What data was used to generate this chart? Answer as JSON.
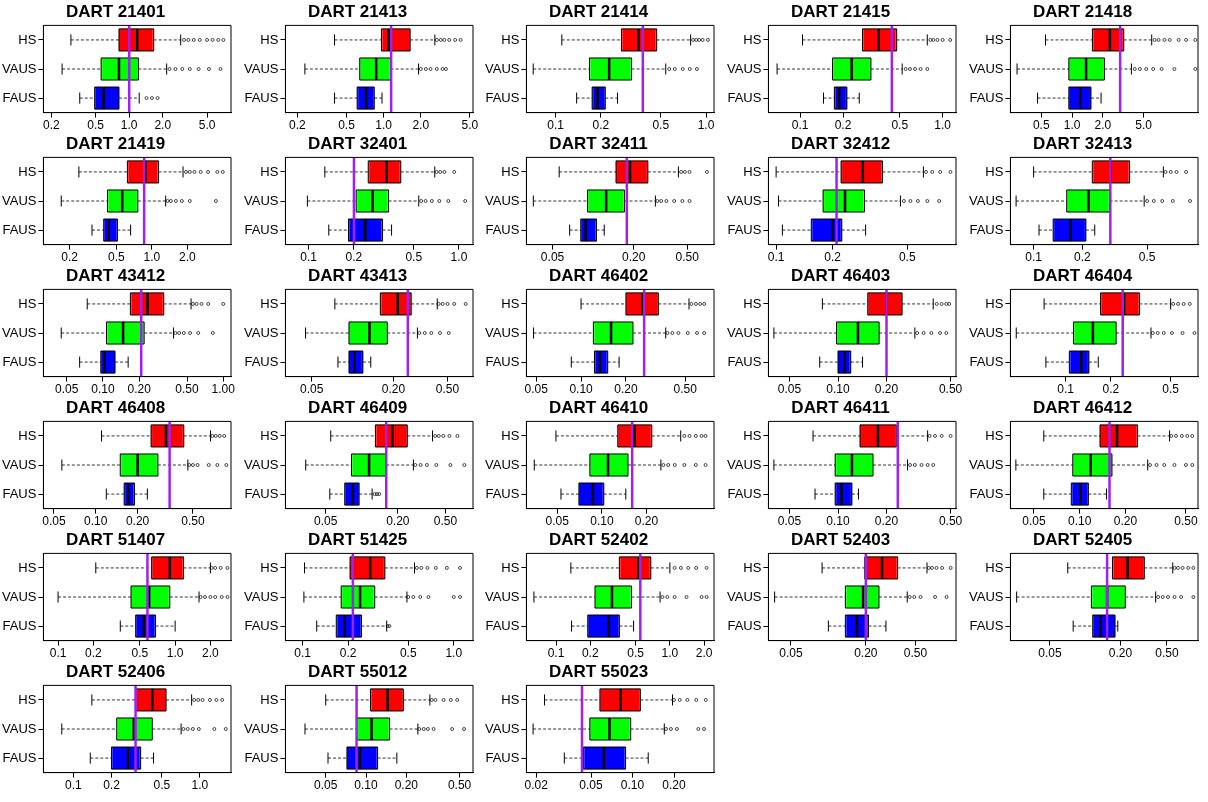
{
  "chart_data": [
    {
      "type": "box",
      "title": "DART 21401",
      "orientation": "horizontal",
      "categories": [
        "HS",
        "VAUS",
        "FAUS"
      ],
      "colors": [
        "#ff0000",
        "#00ff00",
        "#0000ff"
      ],
      "log": "x",
      "xlim": [
        0.17,
        8.2
      ],
      "xticks": [
        0.2,
        0.5,
        {
          "value": 1,
          "label": "1.0"
        },
        {
          "value": 2,
          "label": "2.0"
        },
        {
          "value": 5,
          "label": "5.0"
        }
      ],
      "ref_lines": [
        {
          "axis": "x",
          "value": 1.0,
          "color": "#a020f0"
        }
      ],
      "boxes": [
        {
          "low": 0.3,
          "q1": 0.81,
          "median": 1.18,
          "q3": 1.66,
          "high": 2.9,
          "outliers": [
            3.1,
            3.4,
            3.8,
            4.3,
            5.0,
            5.6,
            6.3,
            7.0
          ]
        },
        {
          "low": 0.25,
          "q1": 0.56,
          "median": 0.81,
          "q3": 1.21,
          "high": 2.17,
          "outliers": [
            2.3,
            2.6,
            3.0,
            3.5,
            4.2,
            5.2,
            6.6
          ]
        },
        {
          "low": 0.36,
          "q1": 0.49,
          "median": 0.59,
          "q3": 0.81,
          "high": 1.23,
          "outliers": [
            1.43,
            1.6,
            1.8
          ]
        }
      ]
    },
    {
      "type": "box",
      "title": "DART 21413",
      "orientation": "horizontal",
      "categories": [
        "HS",
        "VAUS",
        "FAUS"
      ],
      "colors": [
        "#ff0000",
        "#00ff00",
        "#0000ff"
      ],
      "log": "x",
      "xlim": [
        0.16,
        5.3
      ],
      "xticks": [
        0.2,
        0.5,
        {
          "value": 1,
          "label": "1.0"
        },
        {
          "value": 2,
          "label": "2.0"
        },
        {
          "value": 5,
          "label": "5.0"
        }
      ],
      "ref_lines": [
        {
          "axis": "x",
          "value": 1.15,
          "color": "#a020f0"
        }
      ],
      "boxes": [
        {
          "low": 0.4,
          "q1": 0.96,
          "median": 1.1,
          "q3": 1.64,
          "high": 2.6,
          "outliers": [
            2.7,
            2.9,
            3.1,
            3.4,
            3.8,
            4.2
          ]
        },
        {
          "low": 0.23,
          "q1": 0.64,
          "median": 0.87,
          "q3": 1.14,
          "high": 1.92,
          "outliers": [
            2.0,
            2.2,
            2.4,
            2.7,
            3.0,
            3.2
          ]
        },
        {
          "low": 0.4,
          "q1": 0.61,
          "median": 0.72,
          "q3": 0.84,
          "high": 0.97
        }
      ]
    },
    {
      "type": "box",
      "title": "DART 21414",
      "orientation": "horizontal",
      "categories": [
        "HS",
        "VAUS",
        "FAUS"
      ],
      "colors": [
        "#ff0000",
        "#00ff00",
        "#0000ff"
      ],
      "log": "x",
      "xlim": [
        0.064,
        1.13
      ],
      "xticks": [
        0.1,
        0.2,
        0.5,
        {
          "value": 1,
          "label": "1.0"
        }
      ],
      "ref_lines": [
        {
          "axis": "x",
          "value": 0.38,
          "color": "#a020f0"
        }
      ],
      "boxes": [
        {
          "low": 0.11,
          "q1": 0.274,
          "median": 0.356,
          "q3": 0.47,
          "high": 0.79,
          "outliers": [
            0.82,
            0.86,
            0.9,
            0.95,
            1.03
          ]
        },
        {
          "low": 0.071,
          "q1": 0.168,
          "median": 0.227,
          "q3": 0.32,
          "high": 0.54,
          "outliers": [
            0.57,
            0.62,
            0.7,
            0.78,
            0.87
          ]
        },
        {
          "low": 0.138,
          "q1": 0.175,
          "median": 0.19,
          "q3": 0.214,
          "high": 0.258
        }
      ]
    },
    {
      "type": "box",
      "title": "DART 21415",
      "orientation": "horizontal",
      "categories": [
        "HS",
        "VAUS",
        "FAUS"
      ],
      "colors": [
        "#ff0000",
        "#00ff00",
        "#0000ff"
      ],
      "log": "x",
      "xlim": [
        0.06,
        1.24
      ],
      "xticks": [
        0.1,
        0.2,
        0.5,
        {
          "value": 1,
          "label": "1.0"
        }
      ],
      "ref_lines": [
        {
          "axis": "x",
          "value": 0.44,
          "color": "#a020f0"
        }
      ],
      "boxes": [
        {
          "low": 0.104,
          "q1": 0.274,
          "median": 0.356,
          "q3": 0.476,
          "high": 0.78,
          "outliers": [
            0.82,
            0.86,
            0.92,
            1.0,
            1.13
          ]
        },
        {
          "low": 0.069,
          "q1": 0.169,
          "median": 0.23,
          "q3": 0.314,
          "high": 0.52,
          "outliers": [
            0.55,
            0.59,
            0.64,
            0.7,
            0.78
          ]
        },
        {
          "low": 0.146,
          "q1": 0.174,
          "median": 0.188,
          "q3": 0.213,
          "high": 0.26
        }
      ]
    },
    {
      "type": "box",
      "title": "DART 21418",
      "orientation": "horizontal",
      "categories": [
        "HS",
        "VAUS",
        "FAUS"
      ],
      "colors": [
        "#ff0000",
        "#00ff00",
        "#0000ff"
      ],
      "log": "x",
      "xlim": [
        0.25,
        17
      ],
      "xticks": [
        0.5,
        {
          "value": 1,
          "label": "1.0"
        },
        {
          "value": 2,
          "label": "2.0"
        },
        {
          "value": 5,
          "label": "5.0"
        }
      ],
      "ref_lines": [
        {
          "axis": "x",
          "value": 2.95,
          "color": "#a020f0"
        }
      ],
      "boxes": [
        {
          "low": 0.55,
          "q1": 1.58,
          "median": 2.34,
          "q3": 3.2,
          "high": 6.0,
          "outliers": [
            6.4,
            7,
            8,
            9,
            11,
            13,
            16
          ]
        },
        {
          "low": 0.29,
          "q1": 0.93,
          "median": 1.37,
          "q3": 2.07,
          "high": 3.8,
          "outliers": [
            4.1,
            4.6,
            5.3,
            6.2,
            7.5,
            10,
            16
          ]
        },
        {
          "low": 0.46,
          "q1": 0.93,
          "median": 1.2,
          "q3": 1.53,
          "high": 1.92
        }
      ]
    },
    {
      "type": "box",
      "title": "DART 21419",
      "orientation": "horizontal",
      "categories": [
        "HS",
        "VAUS",
        "FAUS"
      ],
      "colors": [
        "#ff0000",
        "#00ff00",
        "#0000ff"
      ],
      "log": "x",
      "xlim": [
        0.12,
        4.7
      ],
      "xticks": [
        0.2,
        0.5,
        {
          "value": 1,
          "label": "1.0"
        },
        {
          "value": 2,
          "label": "2.0"
        }
      ],
      "ref_lines": [
        {
          "axis": "x",
          "value": 0.86,
          "color": "#a020f0"
        }
      ],
      "boxes": [
        {
          "low": 0.24,
          "q1": 0.62,
          "median": 0.88,
          "q3": 1.14,
          "high": 1.84,
          "outliers": [
            1.95,
            2.1,
            2.3,
            2.6,
            3.0,
            3.6,
            4.0
          ]
        },
        {
          "low": 0.17,
          "q1": 0.42,
          "median": 0.56,
          "q3": 0.76,
          "high": 1.31,
          "outliers": [
            1.36,
            1.45,
            1.6,
            1.8,
            2.1,
            3.5
          ]
        },
        {
          "low": 0.31,
          "q1": 0.39,
          "median": 0.43,
          "q3": 0.51,
          "high": 0.66
        }
      ]
    },
    {
      "type": "box",
      "title": "DART 32401",
      "orientation": "horizontal",
      "categories": [
        "HS",
        "VAUS",
        "FAUS"
      ],
      "colors": [
        "#ff0000",
        "#00ff00",
        "#0000ff"
      ],
      "log": "x",
      "xlim": [
        0.07,
        1.24
      ],
      "xticks": [
        0.1,
        0.2,
        0.5,
        {
          "value": 1,
          "label": "1.0"
        }
      ],
      "ref_lines": [
        {
          "axis": "x",
          "value": 0.2,
          "color": "#a020f0"
        }
      ],
      "boxes": [
        {
          "low": 0.128,
          "q1": 0.249,
          "median": 0.33,
          "q3": 0.41,
          "high": 0.69,
          "outliers": [
            0.71,
            0.75,
            0.8,
            0.93
          ]
        },
        {
          "low": 0.098,
          "q1": 0.207,
          "median": 0.266,
          "q3": 0.34,
          "high": 0.54,
          "outliers": [
            0.56,
            0.6,
            0.66,
            0.74,
            0.85,
            1.1
          ]
        },
        {
          "low": 0.136,
          "q1": 0.184,
          "median": 0.238,
          "q3": 0.31,
          "high": 0.356
        }
      ]
    },
    {
      "type": "box",
      "title": "DART 32411",
      "orientation": "horizontal",
      "categories": [
        "HS",
        "VAUS",
        "FAUS"
      ],
      "colors": [
        "#ff0000",
        "#00ff00",
        "#0000ff"
      ],
      "log": "x",
      "xlim": [
        0.032,
        0.79
      ],
      "xticks": [
        0.05,
        {
          "value": 0.2,
          "label": "0.20"
        },
        {
          "value": 0.5,
          "label": "0.50"
        }
      ],
      "ref_lines": [
        {
          "axis": "x",
          "value": 0.178,
          "color": "#a020f0"
        }
      ],
      "boxes": [
        {
          "low": 0.056,
          "q1": 0.148,
          "median": 0.188,
          "q3": 0.255,
          "high": 0.43,
          "outliers": [
            0.45,
            0.48,
            0.52,
            0.7
          ]
        },
        {
          "low": 0.036,
          "q1": 0.091,
          "median": 0.125,
          "q3": 0.171,
          "high": 0.29,
          "outliers": [
            0.3,
            0.32,
            0.35,
            0.4,
            0.46,
            0.52
          ]
        },
        {
          "low": 0.067,
          "q1": 0.081,
          "median": 0.088,
          "q3": 0.106,
          "high": 0.121
        }
      ]
    },
    {
      "type": "box",
      "title": "DART 32412",
      "orientation": "horizontal",
      "categories": [
        "HS",
        "VAUS",
        "FAUS"
      ],
      "colors": [
        "#ff0000",
        "#00ff00",
        "#0000ff"
      ],
      "log": "x",
      "xlim": [
        0.091,
        0.91
      ],
      "xticks": [
        0.1,
        0.2,
        0.5
      ],
      "ref_lines": [
        {
          "axis": "x",
          "value": 0.21,
          "color": "#a020f0"
        }
      ],
      "boxes": [
        {
          "low": 0.1,
          "q1": 0.222,
          "median": 0.29,
          "q3": 0.369,
          "high": 0.61,
          "outliers": [
            0.63,
            0.68,
            0.75,
            0.85
          ]
        },
        {
          "low": 0.103,
          "q1": 0.178,
          "median": 0.233,
          "q3": 0.296,
          "high": 0.46,
          "outliers": [
            0.48,
            0.52,
            0.57,
            0.64,
            0.74
          ]
        },
        {
          "low": 0.108,
          "q1": 0.154,
          "median": 0.2,
          "q3": 0.224,
          "high": 0.3
        }
      ]
    },
    {
      "type": "box",
      "title": "DART 32413",
      "orientation": "horizontal",
      "categories": [
        "HS",
        "VAUS",
        "FAUS"
      ],
      "colors": [
        "#ff0000",
        "#00ff00",
        "#0000ff"
      ],
      "log": "x",
      "xlim": [
        0.072,
        1.03
      ],
      "xticks": [
        0.1,
        0.2,
        0.5
      ],
      "ref_lines": [
        {
          "axis": "x",
          "value": 0.297,
          "color": "#a020f0"
        }
      ],
      "boxes": [
        {
          "low": 0.1,
          "q1": 0.23,
          "median": 0.297,
          "q3": 0.39,
          "high": 0.63,
          "outliers": [
            0.65,
            0.7,
            0.76,
            0.87
          ]
        },
        {
          "low": 0.078,
          "q1": 0.16,
          "median": 0.218,
          "q3": 0.294,
          "high": 0.48,
          "outliers": [
            0.5,
            0.55,
            0.62,
            0.72,
            0.92
          ]
        },
        {
          "low": 0.108,
          "q1": 0.132,
          "median": 0.169,
          "q3": 0.21,
          "high": 0.238
        }
      ]
    },
    {
      "type": "box",
      "title": "DART 43412",
      "orientation": "horizontal",
      "categories": [
        "HS",
        "VAUS",
        "FAUS"
      ],
      "colors": [
        "#ff0000",
        "#00ff00",
        "#0000ff"
      ],
      "log": "x",
      "xlim": [
        0.032,
        1.16
      ],
      "xticks": [
        0.05,
        {
          "value": 0.1,
          "label": "0.10"
        },
        {
          "value": 0.2,
          "label": "0.20"
        },
        {
          "value": 0.5,
          "label": "0.50"
        },
        {
          "value": 1,
          "label": "1.00"
        }
      ],
      "ref_lines": [
        {
          "axis": "x",
          "value": 0.208,
          "color": "#a020f0"
        }
      ],
      "boxes": [
        {
          "low": 0.074,
          "q1": 0.169,
          "median": 0.235,
          "q3": 0.32,
          "high": 0.54,
          "outliers": [
            0.56,
            0.6,
            0.66,
            0.75,
            1.0
          ]
        },
        {
          "low": 0.045,
          "q1": 0.107,
          "median": 0.147,
          "q3": 0.22,
          "high": 0.386,
          "outliers": [
            0.4,
            0.43,
            0.47,
            0.53,
            0.62,
            0.82
          ]
        },
        {
          "low": 0.064,
          "q1": 0.096,
          "median": 0.103,
          "q3": 0.126,
          "high": 0.162
        }
      ]
    },
    {
      "type": "box",
      "title": "DART 43413",
      "orientation": "horizontal",
      "categories": [
        "HS",
        "VAUS",
        "FAUS"
      ],
      "colors": [
        "#ff0000",
        "#00ff00",
        "#0000ff"
      ],
      "log": "x",
      "xlim": [
        0.032,
        0.77
      ],
      "xticks": [
        0.05,
        {
          "value": 0.2,
          "label": "0.20"
        },
        {
          "value": 0.5,
          "label": "0.50"
        }
      ],
      "ref_lines": [
        {
          "axis": "x",
          "value": 0.255,
          "color": "#a020f0"
        }
      ],
      "boxes": [
        {
          "low": 0.074,
          "q1": 0.16,
          "median": 0.215,
          "q3": 0.27,
          "high": 0.42,
          "outliers": [
            0.43,
            0.46,
            0.5,
            0.56,
            0.68
          ]
        },
        {
          "low": 0.045,
          "q1": 0.094,
          "median": 0.133,
          "q3": 0.18,
          "high": 0.3,
          "outliers": [
            0.31,
            0.34,
            0.38,
            0.44,
            0.51
          ]
        },
        {
          "low": 0.078,
          "q1": 0.094,
          "median": 0.103,
          "q3": 0.119,
          "high": 0.136
        }
      ]
    },
    {
      "type": "box",
      "title": "DART 46402",
      "orientation": "horizontal",
      "categories": [
        "HS",
        "VAUS",
        "FAUS"
      ],
      "colors": [
        "#ff0000",
        "#00ff00",
        "#0000ff"
      ],
      "log": "x",
      "xlim": [
        0.043,
        0.78
      ],
      "xticks": [
        0.05,
        {
          "value": 0.1,
          "label": "0.10"
        },
        {
          "value": 0.2,
          "label": "0.20"
        },
        {
          "value": 0.5,
          "label": "0.50"
        }
      ],
      "ref_lines": [
        {
          "axis": "x",
          "value": 0.265,
          "color": "#a020f0"
        }
      ],
      "boxes": [
        {
          "low": 0.1,
          "q1": 0.2,
          "median": 0.259,
          "q3": 0.33,
          "high": 0.53,
          "outliers": [
            0.55,
            0.59,
            0.63,
            0.67
          ]
        },
        {
          "low": 0.048,
          "q1": 0.121,
          "median": 0.159,
          "q3": 0.223,
          "high": 0.37,
          "outliers": [
            0.38,
            0.41,
            0.45,
            0.52,
            0.6,
            0.67
          ]
        },
        {
          "low": 0.086,
          "q1": 0.123,
          "median": 0.134,
          "q3": 0.151,
          "high": 0.18
        }
      ]
    },
    {
      "type": "box",
      "title": "DART 46403",
      "orientation": "horizontal",
      "categories": [
        "HS",
        "VAUS",
        "FAUS"
      ],
      "colors": [
        "#ff0000",
        "#00ff00",
        "#0000ff"
      ],
      "log": "x",
      "xlim": [
        0.037,
        0.54
      ],
      "xticks": [
        0.05,
        {
          "value": 0.1,
          "label": "0.10"
        },
        {
          "value": 0.2,
          "label": "0.20"
        },
        {
          "value": 0.5,
          "label": "0.50"
        }
      ],
      "ref_lines": [
        {
          "axis": "x",
          "value": 0.2,
          "color": "#a020f0"
        }
      ],
      "boxes": [
        {
          "low": 0.08,
          "q1": 0.153,
          "median": 0.2,
          "q3": 0.25,
          "high": 0.39,
          "outliers": [
            0.41,
            0.44,
            0.47,
            0.49
          ]
        },
        {
          "low": 0.04,
          "q1": 0.098,
          "median": 0.133,
          "q3": 0.18,
          "high": 0.3,
          "outliers": [
            0.31,
            0.34,
            0.38,
            0.43,
            0.47
          ]
        },
        {
          "low": 0.077,
          "q1": 0.1,
          "median": 0.11,
          "q3": 0.12,
          "high": 0.142
        }
      ]
    },
    {
      "type": "box",
      "title": "DART 46404",
      "orientation": "horizontal",
      "categories": [
        "HS",
        "VAUS",
        "FAUS"
      ],
      "colors": [
        "#ff0000",
        "#00ff00",
        "#0000ff"
      ],
      "log": "x",
      "xlim": [
        0.043,
        0.76
      ],
      "xticks": [
        0.1,
        0.2,
        0.5
      ],
      "ref_lines": [
        {
          "axis": "x",
          "value": 0.24,
          "color": "#a020f0"
        }
      ],
      "boxes": [
        {
          "low": 0.072,
          "q1": 0.171,
          "median": 0.245,
          "q3": 0.31,
          "high": 0.5,
          "outliers": [
            0.52,
            0.56,
            0.61,
            0.67
          ]
        },
        {
          "low": 0.047,
          "q1": 0.113,
          "median": 0.152,
          "q3": 0.217,
          "high": 0.37,
          "outliers": [
            0.38,
            0.41,
            0.45,
            0.51,
            0.6,
            0.72
          ]
        },
        {
          "low": 0.074,
          "q1": 0.106,
          "median": 0.127,
          "q3": 0.143,
          "high": 0.165
        }
      ]
    },
    {
      "type": "box",
      "title": "DART 46408",
      "orientation": "horizontal",
      "categories": [
        "HS",
        "VAUS",
        "FAUS"
      ],
      "colors": [
        "#ff0000",
        "#00ff00",
        "#0000ff"
      ],
      "log": "x",
      "xlim": [
        0.042,
        0.94
      ],
      "xticks": [
        0.05,
        {
          "value": 0.1,
          "label": "0.10"
        },
        {
          "value": 0.2,
          "label": "0.20"
        },
        {
          "value": 0.5,
          "label": "0.50"
        }
      ],
      "ref_lines": [
        {
          "axis": "x",
          "value": 0.34,
          "color": "#a020f0"
        }
      ],
      "boxes": [
        {
          "low": 0.11,
          "q1": 0.25,
          "median": 0.32,
          "q3": 0.43,
          "high": 0.67,
          "outliers": [
            0.69,
            0.73,
            0.78,
            0.84
          ]
        },
        {
          "low": 0.057,
          "q1": 0.15,
          "median": 0.2,
          "q3": 0.28,
          "high": 0.46,
          "outliers": [
            0.47,
            0.5,
            0.54,
            0.65,
            0.75,
            0.87
          ]
        },
        {
          "low": 0.119,
          "q1": 0.16,
          "median": 0.171,
          "q3": 0.19,
          "high": 0.235
        }
      ]
    },
    {
      "type": "box",
      "title": "DART 46409",
      "orientation": "horizontal",
      "categories": [
        "HS",
        "VAUS",
        "FAUS"
      ],
      "colors": [
        "#ff0000",
        "#00ff00",
        "#0000ff"
      ],
      "log": "x",
      "xlim": [
        0.023,
        0.85
      ],
      "xticks": [
        0.05,
        {
          "value": 0.2,
          "label": "0.20"
        },
        {
          "value": 0.5,
          "label": "0.50"
        }
      ],
      "ref_lines": [
        {
          "axis": "x",
          "value": 0.16,
          "color": "#a020f0"
        }
      ],
      "boxes": [
        {
          "low": 0.055,
          "q1": 0.13,
          "median": 0.18,
          "q3": 0.24,
          "high": 0.39,
          "outliers": [
            0.41,
            0.44,
            0.48,
            0.54,
            0.63
          ]
        },
        {
          "low": 0.034,
          "q1": 0.082,
          "median": 0.115,
          "q3": 0.16,
          "high": 0.27,
          "outliers": [
            0.28,
            0.31,
            0.35,
            0.42,
            0.55,
            0.72
          ]
        },
        {
          "low": 0.054,
          "q1": 0.072,
          "median": 0.084,
          "q3": 0.095,
          "high": 0.122,
          "outliers": [
            0.128,
            0.134,
            0.14
          ]
        }
      ]
    },
    {
      "type": "box",
      "title": "DART 46410",
      "orientation": "horizontal",
      "categories": [
        "HS",
        "VAUS",
        "FAUS"
      ],
      "colors": [
        "#ff0000",
        "#00ff00",
        "#0000ff"
      ],
      "log": "x",
      "xlim": [
        0.031,
        0.57
      ],
      "xticks": [
        0.05,
        {
          "value": 0.1,
          "label": "0.10"
        },
        {
          "value": 0.2,
          "label": "0.20"
        }
      ],
      "ref_lines": [
        {
          "axis": "x",
          "value": 0.16,
          "color": "#a020f0"
        }
      ],
      "boxes": [
        {
          "low": 0.049,
          "q1": 0.128,
          "median": 0.166,
          "q3": 0.217,
          "high": 0.34,
          "outliers": [
            0.36,
            0.39,
            0.43,
            0.47,
            0.5
          ]
        },
        {
          "low": 0.035,
          "q1": 0.083,
          "median": 0.11,
          "q3": 0.15,
          "high": 0.25,
          "outliers": [
            0.26,
            0.28,
            0.31,
            0.36,
            0.43,
            0.5
          ]
        },
        {
          "low": 0.053,
          "q1": 0.07,
          "median": 0.087,
          "q3": 0.103,
          "high": 0.145
        }
      ]
    },
    {
      "type": "box",
      "title": "DART 46411",
      "orientation": "horizontal",
      "categories": [
        "HS",
        "VAUS",
        "FAUS"
      ],
      "colors": [
        "#ff0000",
        "#00ff00",
        "#0000ff"
      ],
      "log": "x",
      "xlim": [
        0.037,
        0.54
      ],
      "xticks": [
        0.05,
        {
          "value": 0.1,
          "label": "0.10"
        },
        {
          "value": 0.2,
          "label": "0.20"
        },
        {
          "value": 0.5,
          "label": "0.50"
        }
      ],
      "ref_lines": [
        {
          "axis": "x",
          "value": 0.235,
          "color": "#a020f0"
        }
      ],
      "boxes": [
        {
          "low": 0.07,
          "q1": 0.137,
          "median": 0.177,
          "q3": 0.23,
          "high": 0.36,
          "outliers": [
            0.37,
            0.4,
            0.44,
            0.5
          ]
        },
        {
          "low": 0.04,
          "q1": 0.096,
          "median": 0.122,
          "q3": 0.165,
          "high": 0.27,
          "outliers": [
            0.28,
            0.3,
            0.33,
            0.36,
            0.39
          ]
        },
        {
          "low": 0.072,
          "q1": 0.096,
          "median": 0.105,
          "q3": 0.122,
          "high": 0.134
        }
      ]
    },
    {
      "type": "box",
      "title": "DART 46412",
      "orientation": "horizontal",
      "categories": [
        "HS",
        "VAUS",
        "FAUS"
      ],
      "colors": [
        "#ff0000",
        "#00ff00",
        "#0000ff"
      ],
      "log": "x",
      "xlim": [
        0.035,
        0.6
      ],
      "xticks": [
        0.05,
        {
          "value": 0.1,
          "label": "0.10"
        },
        {
          "value": 0.2,
          "label": "0.20"
        },
        {
          "value": 0.5,
          "label": "0.50"
        }
      ],
      "ref_lines": [
        {
          "axis": "x",
          "value": 0.157,
          "color": "#a020f0"
        }
      ],
      "boxes": [
        {
          "low": 0.058,
          "q1": 0.136,
          "median": 0.176,
          "q3": 0.24,
          "high": 0.39,
          "outliers": [
            0.4,
            0.43,
            0.47,
            0.51,
            0.55
          ]
        },
        {
          "low": 0.038,
          "q1": 0.09,
          "median": 0.118,
          "q3": 0.163,
          "high": 0.28,
          "outliers": [
            0.29,
            0.32,
            0.36,
            0.42,
            0.5,
            0.55
          ]
        },
        {
          "low": 0.058,
          "q1": 0.088,
          "median": 0.101,
          "q3": 0.114,
          "high": 0.15
        }
      ]
    },
    {
      "type": "box",
      "title": "DART 51407",
      "orientation": "horizontal",
      "categories": [
        "HS",
        "VAUS",
        "FAUS"
      ],
      "colors": [
        "#ff0000",
        "#00ff00",
        "#0000ff"
      ],
      "log": "x",
      "xlim": [
        0.075,
        3.0
      ],
      "xticks": [
        0.1,
        0.2,
        0.5,
        {
          "value": 1,
          "label": "1.0"
        },
        {
          "value": 2,
          "label": "2.0"
        }
      ],
      "ref_lines": [
        {
          "axis": "x",
          "value": 0.58,
          "color": "#a020f0"
        }
      ],
      "boxes": [
        {
          "low": 0.21,
          "q1": 0.63,
          "median": 0.9,
          "q3": 1.18,
          "high": 2.0,
          "outliers": [
            2.05,
            2.2,
            2.45,
            2.8
          ]
        },
        {
          "low": 0.1,
          "q1": 0.42,
          "median": 0.6,
          "q3": 0.9,
          "high": 1.6,
          "outliers": [
            1.65,
            1.8,
            2.0,
            2.2,
            2.5,
            2.8
          ]
        },
        {
          "low": 0.34,
          "q1": 0.46,
          "median": 0.54,
          "q3": 0.68,
          "high": 1.0
        }
      ]
    },
    {
      "type": "box",
      "title": "DART 51425",
      "orientation": "horizontal",
      "categories": [
        "HS",
        "VAUS",
        "FAUS"
      ],
      "colors": [
        "#ff0000",
        "#00ff00",
        "#0000ff"
      ],
      "log": "x",
      "xlim": [
        0.077,
        1.34
      ],
      "xticks": [
        0.1,
        0.2,
        0.5,
        {
          "value": 1,
          "label": "1.0"
        }
      ],
      "ref_lines": [
        {
          "axis": "x",
          "value": 0.215,
          "color": "#a020f0"
        }
      ],
      "boxes": [
        {
          "low": 0.103,
          "q1": 0.206,
          "median": 0.28,
          "q3": 0.35,
          "high": 0.55,
          "outliers": [
            0.57,
            0.61,
            0.67,
            0.76,
            0.9,
            1.1
          ]
        },
        {
          "low": 0.102,
          "q1": 0.18,
          "median": 0.24,
          "q3": 0.3,
          "high": 0.49,
          "outliers": [
            0.5,
            0.54,
            0.6,
            0.68,
            1.0,
            1.1
          ]
        },
        {
          "low": 0.124,
          "q1": 0.167,
          "median": 0.19,
          "q3": 0.245,
          "high": 0.36,
          "outliers": [
            0.365,
            0.375
          ]
        }
      ]
    },
    {
      "type": "box",
      "title": "DART 52402",
      "orientation": "horizontal",
      "categories": [
        "HS",
        "VAUS",
        "FAUS"
      ],
      "colors": [
        "#ff0000",
        "#00ff00",
        "#0000ff"
      ],
      "log": "x",
      "xlim": [
        0.055,
        2.44
      ],
      "xticks": [
        0.1,
        0.2,
        0.5,
        {
          "value": 1,
          "label": "1.0"
        },
        {
          "value": 2,
          "label": "2.0"
        }
      ],
      "ref_lines": [
        {
          "axis": "x",
          "value": 0.55,
          "color": "#a020f0"
        }
      ],
      "boxes": [
        {
          "low": 0.135,
          "q1": 0.36,
          "median": 0.53,
          "q3": 0.68,
          "high": 1.0,
          "outliers": [
            1.1,
            1.25,
            1.45,
            1.7,
            2.1
          ]
        },
        {
          "low": 0.064,
          "q1": 0.22,
          "median": 0.31,
          "q3": 0.46,
          "high": 0.82,
          "outliers": [
            0.86,
            0.95,
            1.1,
            1.4,
            1.9,
            2.1
          ]
        },
        {
          "low": 0.137,
          "q1": 0.19,
          "median": 0.29,
          "q3": 0.36,
          "high": 0.48
        }
      ]
    },
    {
      "type": "box",
      "title": "DART 52403",
      "orientation": "horizontal",
      "categories": [
        "HS",
        "VAUS",
        "FAUS"
      ],
      "colors": [
        "#ff0000",
        "#00ff00",
        "#0000ff"
      ],
      "log": "x",
      "xlim": [
        0.033,
        1.06
      ],
      "xticks": [
        0.05,
        {
          "value": 0.2,
          "label": "0.20"
        },
        {
          "value": 0.5,
          "label": "0.50"
        }
      ],
      "ref_lines": [
        {
          "axis": "x",
          "value": 0.2,
          "color": "#a020f0"
        }
      ],
      "boxes": [
        {
          "low": 0.089,
          "q1": 0.196,
          "median": 0.27,
          "q3": 0.36,
          "high": 0.62,
          "outliers": [
            0.64,
            0.68,
            0.74,
            0.82,
            0.96
          ]
        },
        {
          "low": 0.037,
          "q1": 0.137,
          "median": 0.19,
          "q3": 0.255,
          "high": 0.43,
          "outliers": [
            0.45,
            0.49,
            0.55,
            0.72,
            0.89
          ]
        },
        {
          "low": 0.1,
          "q1": 0.137,
          "median": 0.17,
          "q3": 0.21,
          "high": 0.29
        }
      ]
    },
    {
      "type": "box",
      "title": "DART 52405",
      "orientation": "horizontal",
      "categories": [
        "HS",
        "VAUS",
        "FAUS"
      ],
      "colors": [
        "#ff0000",
        "#00ff00",
        "#0000ff"
      ],
      "log": "x",
      "xlim": [
        0.023,
        0.92
      ],
      "xticks": [
        0.05,
        {
          "value": 0.2,
          "label": "0.20"
        },
        {
          "value": 0.5,
          "label": "0.50"
        }
      ],
      "ref_lines": [
        {
          "axis": "x",
          "value": 0.154,
          "color": "#a020f0"
        }
      ],
      "boxes": [
        {
          "low": 0.071,
          "q1": 0.171,
          "median": 0.23,
          "q3": 0.32,
          "high": 0.56,
          "outliers": [
            0.58,
            0.62,
            0.68,
            0.76,
            0.84
          ]
        },
        {
          "low": 0.026,
          "q1": 0.113,
          "median": 0.154,
          "q3": 0.22,
          "high": 0.4,
          "outliers": [
            0.42,
            0.46,
            0.51,
            0.58,
            0.66,
            0.84
          ]
        },
        {
          "low": 0.079,
          "q1": 0.116,
          "median": 0.135,
          "q3": 0.18,
          "high": 0.19
        }
      ]
    },
    {
      "type": "box",
      "title": "DART 52406",
      "orientation": "horizontal",
      "categories": [
        "HS",
        "VAUS",
        "FAUS"
      ],
      "colors": [
        "#ff0000",
        "#00ff00",
        "#0000ff"
      ],
      "log": "x",
      "xlim": [
        0.058,
        1.76
      ],
      "xticks": [
        0.1,
        0.2,
        0.5,
        {
          "value": 1,
          "label": "1.0"
        }
      ],
      "ref_lines": [
        {
          "axis": "x",
          "value": 0.31,
          "color": "#a020f0"
        }
      ],
      "boxes": [
        {
          "low": 0.14,
          "q1": 0.31,
          "median": 0.42,
          "q3": 0.54,
          "high": 0.86,
          "outliers": [
            0.9,
            0.97,
            1.05,
            1.2,
            1.35,
            1.5
          ]
        },
        {
          "low": 0.081,
          "q1": 0.22,
          "median": 0.3,
          "q3": 0.42,
          "high": 0.71,
          "outliers": [
            0.74,
            0.8,
            0.88,
            0.98,
            1.3,
            1.6
          ]
        },
        {
          "low": 0.136,
          "q1": 0.2,
          "median": 0.27,
          "q3": 0.34,
          "high": 0.43
        }
      ]
    },
    {
      "type": "box",
      "title": "DART 55012",
      "orientation": "horizontal",
      "categories": [
        "HS",
        "VAUS",
        "FAUS"
      ],
      "colors": [
        "#ff0000",
        "#00ff00",
        "#0000ff"
      ],
      "log": "x",
      "xlim": [
        0.025,
        0.63
      ],
      "xticks": [
        0.05,
        {
          "value": 0.1,
          "label": "0.10"
        },
        {
          "value": 0.2,
          "label": "0.20"
        },
        {
          "value": 0.5,
          "label": "0.50"
        }
      ],
      "ref_lines": [
        {
          "axis": "x",
          "value": 0.085,
          "color": "#a020f0"
        }
      ],
      "boxes": [
        {
          "low": 0.05,
          "q1": 0.108,
          "median": 0.145,
          "q3": 0.19,
          "high": 0.3,
          "outliers": [
            0.31,
            0.33,
            0.38,
            0.43,
            0.48
          ]
        },
        {
          "low": 0.035,
          "q1": 0.085,
          "median": 0.11,
          "q3": 0.15,
          "high": 0.244,
          "outliers": [
            0.25,
            0.27,
            0.29,
            0.32,
            0.44,
            0.54
          ]
        },
        {
          "low": 0.052,
          "q1": 0.072,
          "median": 0.09,
          "q3": 0.122,
          "high": 0.17
        }
      ]
    },
    {
      "type": "box",
      "title": "DART 55023",
      "orientation": "horizontal",
      "categories": [
        "HS",
        "VAUS",
        "FAUS"
      ],
      "colors": [
        "#ff0000",
        "#00ff00",
        "#0000ff"
      ],
      "log": "x",
      "xlim": [
        0.017,
        0.39
      ],
      "xticks": [
        0.02,
        0.05,
        {
          "value": 0.1,
          "label": "0.10"
        },
        {
          "value": 0.2,
          "label": "0.20"
        }
      ],
      "ref_lines": [
        {
          "axis": "x",
          "value": 0.043,
          "color": "#a020f0"
        }
      ],
      "boxes": [
        {
          "low": 0.023,
          "q1": 0.058,
          "median": 0.082,
          "q3": 0.114,
          "high": 0.195,
          "outliers": [
            0.2,
            0.22,
            0.25,
            0.29,
            0.34
          ]
        },
        {
          "low": 0.019,
          "q1": 0.049,
          "median": 0.068,
          "q3": 0.097,
          "high": 0.17,
          "outliers": [
            0.175,
            0.19,
            0.21,
            0.3,
            0.33
          ]
        },
        {
          "low": 0.032,
          "q1": 0.044,
          "median": 0.062,
          "q3": 0.089,
          "high": 0.13
        }
      ]
    }
  ]
}
